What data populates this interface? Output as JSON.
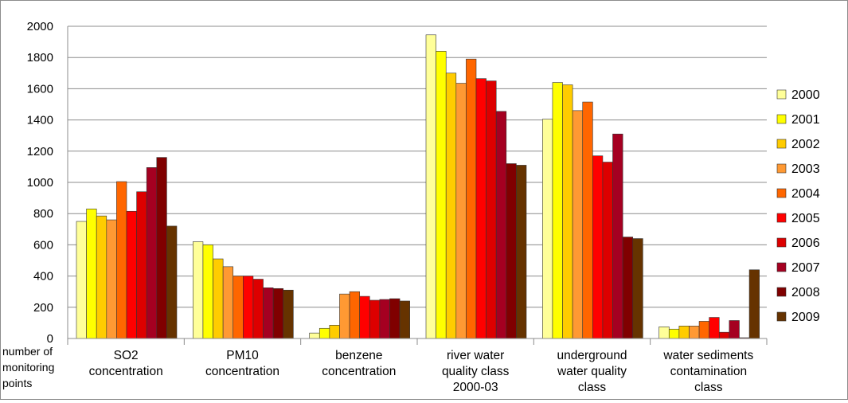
{
  "chart_data": {
    "type": "bar",
    "title": "",
    "xlabel": "number of monitoring points",
    "ylabel": "",
    "ylim": [
      0,
      2000
    ],
    "yticks": [
      0,
      200,
      400,
      600,
      800,
      1000,
      1200,
      1400,
      1600,
      1800,
      2000
    ],
    "grid": true,
    "legend_position": "right",
    "categories": [
      [
        "SO2",
        "concentration"
      ],
      [
        "PM10",
        "concentration"
      ],
      [
        "benzene",
        "concentration"
      ],
      [
        "river water",
        "quality class",
        "2000-03"
      ],
      [
        "underground",
        "water quality",
        "class"
      ],
      [
        "water sediments",
        "contamination",
        "class"
      ]
    ],
    "series": [
      {
        "name": "2000",
        "color": "#FFFF99",
        "values": [
          750,
          620,
          35,
          1945,
          1405,
          75
        ]
      },
      {
        "name": "2001",
        "color": "#FFFF00",
        "values": [
          830,
          600,
          65,
          1840,
          1640,
          60
        ]
      },
      {
        "name": "2002",
        "color": "#FFCC00",
        "values": [
          785,
          510,
          85,
          1700,
          1625,
          80
        ]
      },
      {
        "name": "2003",
        "color": "#FF9933",
        "values": [
          760,
          460,
          285,
          1635,
          1460,
          80
        ]
      },
      {
        "name": "2004",
        "color": "#FF6600",
        "values": [
          1005,
          400,
          300,
          1790,
          1515,
          110
        ]
      },
      {
        "name": "2005",
        "color": "#FF0000",
        "values": [
          815,
          400,
          270,
          1665,
          1170,
          135
        ]
      },
      {
        "name": "2006",
        "color": "#DD0000",
        "values": [
          940,
          380,
          245,
          1650,
          1130,
          40
        ]
      },
      {
        "name": "2007",
        "color": "#A50021",
        "values": [
          1095,
          325,
          250,
          1455,
          1310,
          115
        ]
      },
      {
        "name": "2008",
        "color": "#800000",
        "values": [
          1160,
          320,
          255,
          1120,
          650,
          5
        ]
      },
      {
        "name": "2009",
        "color": "#663300",
        "values": [
          720,
          310,
          240,
          1110,
          640,
          440
        ]
      }
    ]
  }
}
